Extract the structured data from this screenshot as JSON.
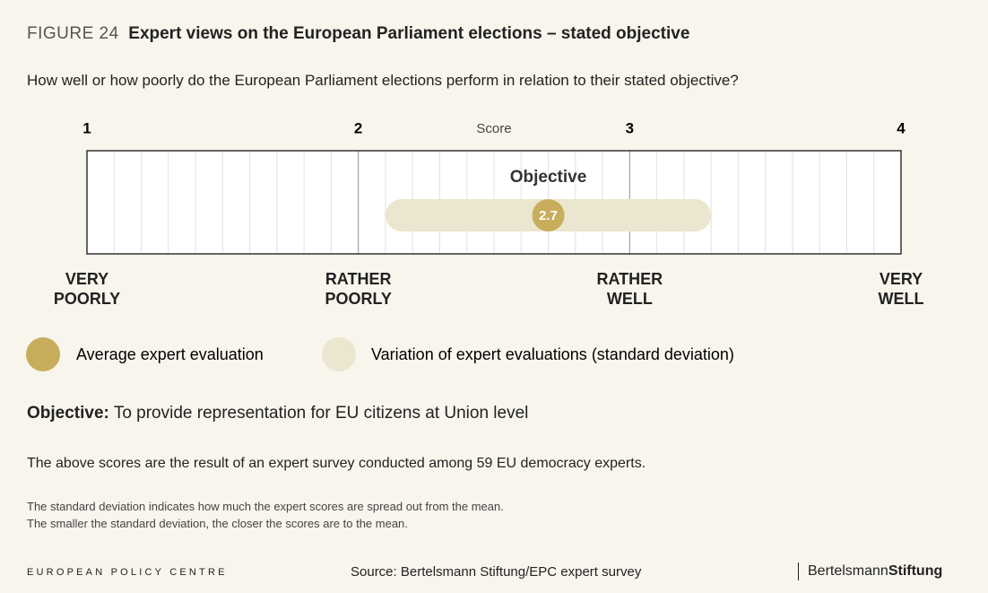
{
  "header": {
    "figure": "FIGURE 24",
    "title": "Expert views on the European Parliament elections – stated objective",
    "question": "How well or how poorly do the European Parliament elections perform in relation to their stated objective?"
  },
  "chart_data": {
    "type": "dot",
    "x_label": "Score",
    "xlim": [
      1,
      4
    ],
    "xticks": [
      1,
      2,
      3,
      4
    ],
    "minor_grid_step": 0.1,
    "scale_labels": [
      "VERY POORLY",
      "RATHER POORLY",
      "RATHER WELL",
      "VERY WELL"
    ],
    "series": [
      {
        "name": "Objective",
        "color": "#c8ad5c",
        "range_color": "#ebe6cf",
        "values": [
          2.7
        ],
        "errors": [
          0.6
        ]
      }
    ],
    "legend": [
      "Average expert evaluation",
      "Variation of expert evaluations (standard deviation)"
    ]
  },
  "notes": {
    "objective_label": "Objective:",
    "objective_text": "To provide representation for EU citizens at Union level",
    "survey": "The above scores are the result of an expert survey conducted among 59 EU democracy experts.",
    "footnotes": [
      "The standard deviation indicates how much the expert scores are spread out from the mean.",
      "The smaller the standard deviation, the closer the scores are to the mean."
    ]
  },
  "footer": {
    "organisation": "EUROPEAN POLICY CENTRE",
    "source": "Source: Bertelsmann Stiftung/EPC expert survey",
    "brand_1": "Bertelsmann",
    "brand_2": "Stiftung"
  }
}
